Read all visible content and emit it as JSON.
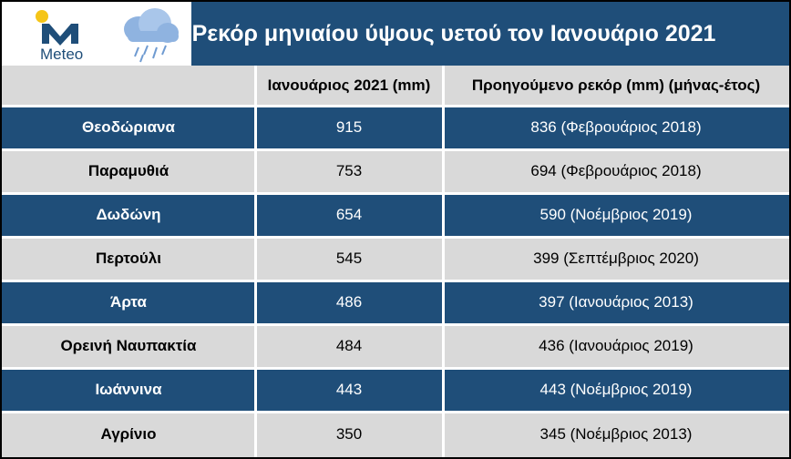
{
  "header": {
    "logo_text": "Meteo",
    "title": "Ρεκόρ μηνιαίου ύψους υετού τον Ιανουάριο 2021"
  },
  "colors": {
    "dark_row": "#1f4e79",
    "light_row": "#d9d9d9",
    "logo_blue": "#1f4e79",
    "logo_yellow": "#f5c518"
  },
  "icons": [
    "meteo-logo-icon",
    "rain-cloud-icon"
  ],
  "table": {
    "columns": [
      "",
      "Ιανουάριος 2021 (mm)",
      "Προηγούμενο ρεκόρ (mm) (μήνας-έτος)"
    ],
    "rows": [
      {
        "station": "Θεοδώριανα",
        "jan2021": "915",
        "previous": "836 (Φεβρουάριος 2018)"
      },
      {
        "station": "Παραμυθιά",
        "jan2021": "753",
        "previous": "694 (Φεβρουάριος 2018)"
      },
      {
        "station": "Δωδώνη",
        "jan2021": "654",
        "previous": "590 (Νοέμβριος 2019)"
      },
      {
        "station": "Περτούλι",
        "jan2021": "545",
        "previous": "399 (Σεπτέμβριος 2020)"
      },
      {
        "station": "Άρτα",
        "jan2021": "486",
        "previous": "397 (Ιανουάριος 2013)"
      },
      {
        "station": "Ορεινή Ναυπακτία",
        "jan2021": "484",
        "previous": "436 (Ιανουάριος 2019)"
      },
      {
        "station": "Ιωάννινα",
        "jan2021": "443",
        "previous": "443 (Νοέμβριος 2019)"
      },
      {
        "station": "Αγρίνιο",
        "jan2021": "350",
        "previous": "345 (Νοέμβριος 2013)"
      }
    ]
  }
}
